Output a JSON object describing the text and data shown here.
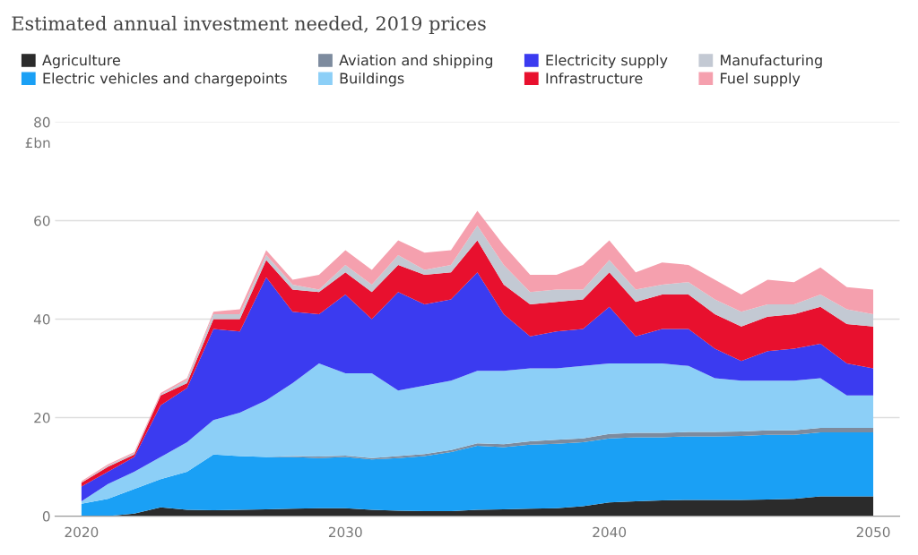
{
  "chart_data": {
    "type": "area",
    "stacked": true,
    "title": "Estimated annual investment needed, 2019 prices",
    "ylabel": "£bn",
    "x": [
      2020,
      2021,
      2022,
      2023,
      2024,
      2025,
      2026,
      2027,
      2028,
      2029,
      2030,
      2031,
      2032,
      2033,
      2034,
      2035,
      2036,
      2037,
      2038,
      2039,
      2040,
      2041,
      2042,
      2043,
      2044,
      2045,
      2046,
      2047,
      2048,
      2049,
      2050
    ],
    "xlim": [
      2019,
      2051
    ],
    "xticks": [
      2020,
      2030,
      2040,
      2050
    ],
    "ylim": [
      0,
      80
    ],
    "yticks": [
      0,
      20,
      40,
      60,
      80
    ],
    "grid": "y",
    "legend": "top",
    "series": [
      {
        "name": "Agriculture",
        "color": "#2b2b2b",
        "values": [
          0,
          0,
          0.5,
          1.8,
          1.3,
          1.2,
          1.3,
          1.4,
          1.5,
          1.6,
          1.6,
          1.3,
          1.1,
          1,
          1,
          1.3,
          1.4,
          1.5,
          1.6,
          2,
          2.8,
          3,
          3.2,
          3.3,
          3.3,
          3.3,
          3.4,
          3.5,
          4,
          4,
          4
        ]
      },
      {
        "name": "Electric vehicles and chargepoints",
        "color": "#1aa0f5",
        "values": [
          2.5,
          3.5,
          5,
          5.7,
          7.7,
          11.3,
          10.9,
          10.6,
          10.5,
          10.2,
          10.4,
          10.2,
          10.7,
          11.2,
          12,
          13,
          12.6,
          13,
          13.1,
          13,
          13,
          13,
          12.8,
          12.9,
          12.9,
          13,
          13.1,
          13,
          13,
          13,
          13
        ]
      },
      {
        "name": "Aviation and shipping",
        "color": "#7d8b9e",
        "values": [
          0,
          0,
          0,
          0,
          0,
          0,
          0,
          0,
          0.2,
          0.3,
          0.3,
          0.3,
          0.4,
          0.4,
          0.4,
          0.5,
          0.6,
          0.7,
          0.8,
          0.8,
          0.9,
          0.9,
          0.9,
          0.9,
          0.9,
          0.9,
          0.9,
          0.9,
          0.9,
          0.9,
          0.9
        ]
      },
      {
        "name": "Buildings",
        "color": "#8ccff7",
        "values": [
          0.5,
          3,
          3.5,
          4.5,
          6,
          7,
          8.8,
          11.5,
          14.8,
          18.9,
          16.7,
          17.2,
          13.3,
          13.9,
          14.1,
          14.7,
          14.9,
          14.8,
          14.5,
          14.7,
          14.3,
          14.1,
          14.1,
          13.4,
          10.9,
          10.3,
          10.1,
          10.1,
          10.1,
          6.6,
          6.6
        ]
      },
      {
        "name": "Electricity supply",
        "color": "#3b3bf0",
        "values": [
          3,
          2.5,
          3,
          10.5,
          11,
          18.5,
          16.5,
          25,
          14.5,
          10,
          16,
          11,
          20,
          16.5,
          16.5,
          20,
          11.5,
          6.5,
          7.5,
          7.5,
          11.5,
          5.5,
          7,
          7.5,
          6,
          4,
          6,
          6.5,
          7,
          6.5,
          5.5
        ]
      },
      {
        "name": "Infrastructure",
        "color": "#e8102e",
        "values": [
          0.8,
          1,
          0.5,
          2,
          1,
          2,
          2.5,
          3.5,
          4.5,
          4.5,
          4.5,
          5.5,
          5.5,
          6,
          5.5,
          6.5,
          6,
          6.5,
          6,
          6,
          7,
          7,
          7,
          7,
          7,
          7,
          7,
          7,
          7.5,
          8,
          8.5
        ]
      },
      {
        "name": "Manufacturing",
        "color": "#c3c9d3",
        "values": [
          0.1,
          0.3,
          0.3,
          0.2,
          0.7,
          1,
          1,
          1,
          1,
          0.5,
          1.5,
          1.5,
          2,
          1,
          1.5,
          3,
          4,
          2.5,
          2.5,
          2,
          2.5,
          2.5,
          2,
          2.5,
          3,
          3,
          2.5,
          2,
          2.5,
          3,
          2.5
        ]
      },
      {
        "name": "Fuel supply",
        "color": "#f5a0ae",
        "values": [
          0.2,
          0.2,
          0.2,
          0.3,
          0.3,
          0.5,
          1,
          1,
          1,
          3,
          3,
          3,
          3,
          3.5,
          3,
          3,
          4,
          3.5,
          3,
          5,
          4,
          3.5,
          4.5,
          3.5,
          4,
          3.5,
          5,
          4.5,
          5.5,
          4.5,
          5
        ]
      }
    ]
  }
}
